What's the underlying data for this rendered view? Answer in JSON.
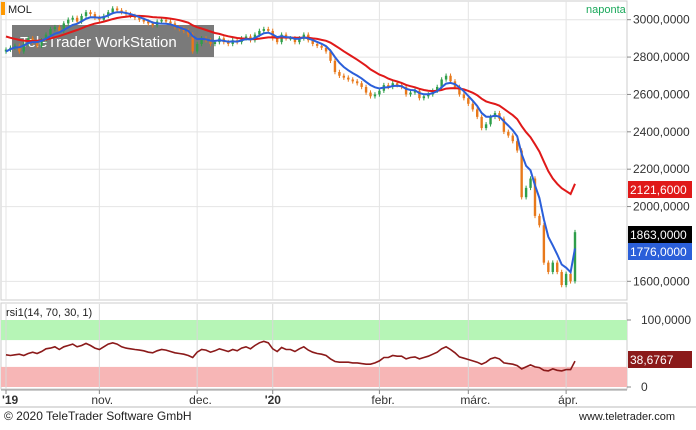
{
  "header": {
    "symbol": "MOL",
    "period": "naponta",
    "watermark": "TeleTrader WorkStation",
    "footer_left": "© 2020 TeleTrader Software GmbH",
    "footer_right": "www.teletrader.com"
  },
  "colors": {
    "accent_orange": "#ff9900",
    "period_green": "#19a85a",
    "ma_fast_blue": "#2b5fd9",
    "ma_slow_red": "#e01919",
    "rsi_line": "#8b1a1a",
    "band_green": "#b6f5b6",
    "band_red": "#f7b6b6"
  },
  "badges": {
    "red": "2121,6000",
    "black": "1863,0000",
    "blue": "1776,0000",
    "rsi": "38,6767"
  },
  "chart_data": [
    {
      "type": "candlestick",
      "title": "MOL",
      "period": "daily",
      "y_ticks": [
        "3000,0000",
        "2800,0000",
        "2600,0000",
        "2400,0000",
        "2200,0000",
        "2000,0000",
        "1600,0000"
      ],
      "ylim": [
        1500,
        3100
      ],
      "x_ticks": [
        {
          "label": "'19",
          "index": 0
        },
        {
          "label": "nov.",
          "index": 21
        },
        {
          "label": "dec.",
          "index": 43
        },
        {
          "label": "'20",
          "index": 60
        },
        {
          "label": "febr.",
          "index": 84
        },
        {
          "label": "márc.",
          "index": 104
        },
        {
          "label": "ápr.",
          "index": 126
        }
      ],
      "x_count": 129,
      "close": [
        2840,
        2850,
        2860,
        2830,
        2870,
        2900,
        2880,
        2860,
        2890,
        2920,
        2950,
        2960,
        2940,
        2980,
        3000,
        3010,
        2990,
        3020,
        3040,
        3030,
        3010,
        3000,
        3020,
        3040,
        3060,
        3050,
        3040,
        3030,
        3020,
        3010,
        3000,
        2990,
        2980,
        2970,
        2990,
        3000,
        2990,
        2980,
        2960,
        2950,
        2940,
        2920,
        2830,
        2870,
        2900,
        2890,
        2870,
        2880,
        2900,
        2880,
        2870,
        2890,
        2880,
        2900,
        2910,
        2890,
        2920,
        2940,
        2950,
        2940,
        2900,
        2880,
        2920,
        2900,
        2900,
        2880,
        2900,
        2920,
        2890,
        2870,
        2860,
        2850,
        2830,
        2780,
        2720,
        2700,
        2690,
        2680,
        2670,
        2660,
        2640,
        2610,
        2590,
        2600,
        2620,
        2650,
        2640,
        2660,
        2650,
        2640,
        2600,
        2610,
        2620,
        2580,
        2590,
        2600,
        2620,
        2640,
        2680,
        2700,
        2670,
        2640,
        2600,
        2580,
        2550,
        2520,
        2480,
        2420,
        2440,
        2480,
        2500,
        2470,
        2400,
        2380,
        2350,
        2300,
        2050,
        2100,
        2150,
        1950,
        1900,
        1700,
        1650,
        1700,
        1650,
        1580,
        1640,
        1600,
        1863
      ],
      "ma_fast": [
        2830,
        2842,
        2851,
        2852,
        2862,
        2875,
        2880,
        2880,
        2887,
        2898,
        2912,
        2925,
        2932,
        2945,
        2958,
        2972,
        2978,
        2991,
        3005,
        3013,
        3012,
        3010,
        3014,
        3023,
        3035,
        3040,
        3040,
        3036,
        3030,
        3023,
        3014,
        3005,
        2995,
        2985,
        2980,
        2979,
        2978,
        2975,
        2967,
        2958,
        2950,
        2940,
        2912,
        2896,
        2897,
        2895,
        2888,
        2886,
        2890,
        2887,
        2882,
        2884,
        2883,
        2889,
        2896,
        2894,
        2902,
        2915,
        2927,
        2931,
        2921,
        2907,
        2911,
        2907,
        2905,
        2897,
        2898,
        2905,
        2900,
        2891,
        2881,
        2871,
        2858,
        2834,
        2800,
        2770,
        2747,
        2729,
        2714,
        2701,
        2686,
        2667,
        2650,
        2638,
        2632,
        2637,
        2638,
        2645,
        2646,
        2644,
        2630,
        2624,
        2622,
        2607,
        2601,
        2601,
        2607,
        2618,
        2638,
        2658,
        2662,
        2655,
        2638,
        2617,
        2592,
        2566,
        2538,
        2501,
        2481,
        2481,
        2487,
        2481,
        2456,
        2433,
        2408,
        2376,
        2281,
        2218,
        2194,
        2114,
        2046,
        1931,
        1838,
        1792,
        1744,
        1690,
        1673,
        1649,
        1776
      ],
      "ma_slow": [
        2910,
        2903,
        2897,
        2892,
        2888,
        2886,
        2886,
        2887,
        2890,
        2894,
        2900,
        2906,
        2912,
        2920,
        2928,
        2937,
        2945,
        2954,
        2964,
        2972,
        2979,
        2984,
        2990,
        2996,
        3003,
        3009,
        3013,
        3016,
        3019,
        3020,
        3020,
        3019,
        3017,
        3014,
        3012,
        3011,
        3009,
        3006,
        3002,
        2997,
        2991,
        2984,
        2970,
        2960,
        2953,
        2945,
        2937,
        2929,
        2924,
        2917,
        2911,
        2907,
        2902,
        2900,
        2898,
        2896,
        2896,
        2899,
        2902,
        2905,
        2905,
        2903,
        2905,
        2904,
        2904,
        2903,
        2903,
        2904,
        2903,
        2900,
        2897,
        2892,
        2887,
        2877,
        2862,
        2847,
        2831,
        2816,
        2801,
        2786,
        2770,
        2753,
        2734,
        2720,
        2706,
        2697,
        2685,
        2676,
        2669,
        2662,
        2651,
        2644,
        2638,
        2630,
        2624,
        2620,
        2618,
        2620,
        2624,
        2631,
        2633,
        2634,
        2632,
        2627,
        2619,
        2609,
        2596,
        2577,
        2563,
        2555,
        2549,
        2540,
        2523,
        2506,
        2489,
        2468,
        2430,
        2398,
        2371,
        2333,
        2294,
        2240,
        2189,
        2150,
        2122,
        2098,
        2083,
        2067,
        2121.6
      ]
    },
    {
      "type": "line",
      "title": "rsi1(14, 70, 30, 1)",
      "y_ticks": [
        "100,0000",
        "0"
      ],
      "ylim": [
        0,
        100
      ],
      "bands": [
        {
          "from": 70,
          "to": 100,
          "color": "#b6f5b6"
        },
        {
          "from": 0,
          "to": 30,
          "color": "#f7b6b6"
        }
      ],
      "values": [
        48,
        47,
        48,
        49,
        47,
        50,
        52,
        50,
        53,
        57,
        58,
        60,
        56,
        60,
        62,
        64,
        60,
        62,
        65,
        62,
        58,
        56,
        60,
        64,
        66,
        64,
        60,
        58,
        57,
        56,
        55,
        54,
        52,
        51,
        54,
        56,
        55,
        53,
        51,
        50,
        49,
        47,
        44,
        52,
        56,
        55,
        52,
        54,
        57,
        55,
        53,
        56,
        54,
        58,
        60,
        57,
        62,
        66,
        68,
        66,
        57,
        53,
        59,
        56,
        56,
        53,
        57,
        60,
        55,
        52,
        50,
        49,
        47,
        42,
        38,
        37,
        37,
        37,
        36,
        36,
        35,
        34,
        34,
        36,
        39,
        44,
        44,
        47,
        46,
        46,
        42,
        44,
        45,
        42,
        44,
        46,
        49,
        52,
        57,
        60,
        56,
        51,
        45,
        43,
        41,
        39,
        37,
        34,
        37,
        42,
        44,
        42,
        36,
        35,
        34,
        32,
        27,
        30,
        33,
        30,
        29,
        25,
        24,
        27,
        25,
        24,
        26,
        26,
        38.68
      ]
    }
  ]
}
